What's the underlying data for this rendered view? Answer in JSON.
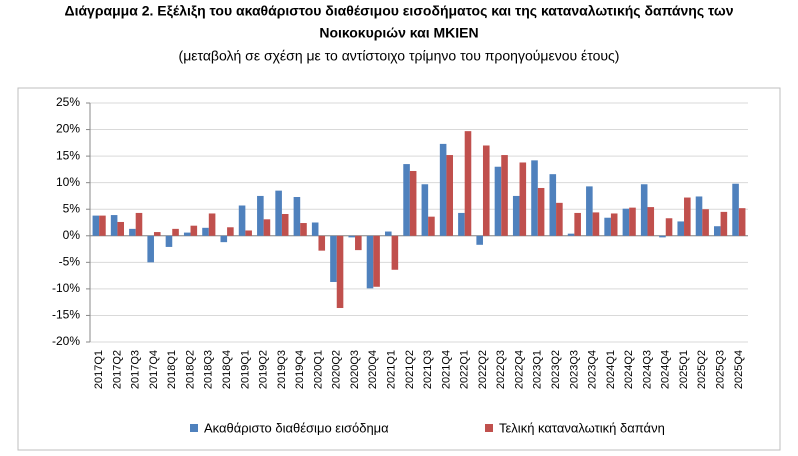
{
  "chart_data": {
    "type": "bar",
    "title": [
      "Διάγραμμα 2. Εξέλιξη του ακαθάριστου διαθέσιμου εισοδήματος και της καταναλωτικής δαπάνης των",
      "Νοικοκυριών και ΜΚΙΕΝ"
    ],
    "subtitle": "(μεταβολή σε σχέση με το αντίστοιχο τρίμηνο του προηγούμενου έτους)",
    "categories": [
      "2017Q1",
      "2017Q2",
      "2017Q3",
      "2017Q4",
      "2018Q1",
      "2018Q2",
      "2018Q3",
      "2018Q4",
      "2019Q1",
      "2019Q2",
      "2019Q3",
      "2019Q4",
      "2020Q1",
      "2020Q2",
      "2020Q3",
      "2020Q4",
      "2021Q1",
      "2021Q2",
      "2021Q3",
      "2021Q4",
      "2022Q1",
      "2022Q2",
      "2022Q3",
      "2022Q4",
      "2023Q1",
      "2023Q2",
      "2023Q3",
      "2023Q4",
      "2024Q1",
      "2024Q2",
      "2024Q3",
      "2024Q4",
      "2025Q1",
      "2025Q2",
      "2025Q3",
      "2025Q4"
    ],
    "series": [
      {
        "name": "Ακαθάριστο διαθέσιμο εισόδημα",
        "color": "#4f81bd",
        "values": [
          3.8,
          3.9,
          1.3,
          -5.0,
          -2.1,
          0.6,
          1.5,
          -1.2,
          5.7,
          7.5,
          8.5,
          7.3,
          2.5,
          -8.7,
          -0.3,
          -9.9,
          0.8,
          13.5,
          9.7,
          17.3,
          4.3,
          -1.7,
          13.0,
          7.5,
          14.2,
          11.6,
          0.4,
          9.3,
          3.4,
          5.1,
          9.7,
          -0.3,
          2.7,
          7.4,
          1.8,
          9.8
        ]
      },
      {
        "name": "Τελική καταναλωτική δαπάνη",
        "color": "#c0504d",
        "values": [
          3.8,
          2.6,
          4.3,
          0.7,
          1.3,
          1.9,
          4.2,
          1.6,
          1.0,
          3.1,
          4.1,
          2.4,
          -2.8,
          -13.6,
          -2.7,
          -9.6,
          -6.4,
          12.2,
          3.6,
          15.2,
          19.7,
          17.0,
          15.2,
          13.8,
          9.0,
          6.2,
          4.3,
          4.4,
          4.2,
          5.3,
          5.4,
          3.3,
          7.2,
          5.0,
          4.5,
          5.2
        ]
      }
    ],
    "ylim": [
      -20,
      25
    ],
    "yticks": [
      {
        "value": -20,
        "label": "-20%"
      },
      {
        "value": -15,
        "label": "-15%"
      },
      {
        "value": -10,
        "label": "-10%"
      },
      {
        "value": -5,
        "label": "-5%"
      },
      {
        "value": 0,
        "label": "0%"
      },
      {
        "value": 5,
        "label": "5%"
      },
      {
        "value": 10,
        "label": "10%"
      },
      {
        "value": 15,
        "label": "15%"
      },
      {
        "value": 20,
        "label": "20%"
      },
      {
        "value": 25,
        "label": "25%"
      }
    ],
    "grid": true,
    "legend": "bottom"
  }
}
